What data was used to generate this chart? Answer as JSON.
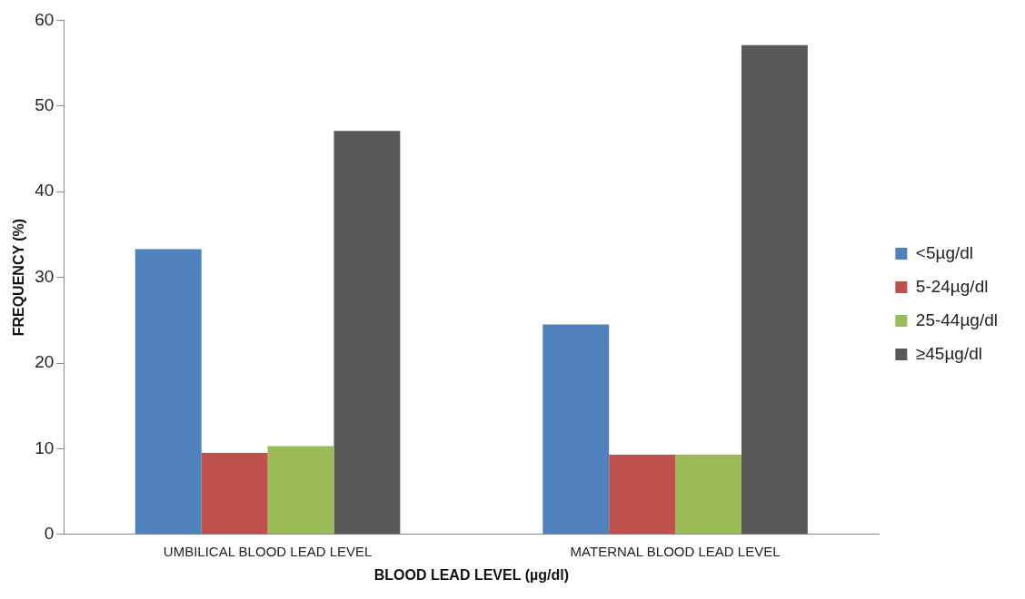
{
  "chart_data": {
    "type": "bar",
    "xlabel": "BLOOD LEAD LEVEL (µg/dl)",
    "ylabel": "FREQUENCY (%)",
    "categories": [
      "UMBILICAL BLOOD LEAD LEVEL",
      "MATERNAL BLOOD LEAD LEVEL"
    ],
    "series": [
      {
        "name": "<5µg/dl",
        "color": "#4f81bd",
        "values": [
          33.3,
          24.5
        ]
      },
      {
        "name": "5-24µg/dl",
        "color": "#c0504d",
        "values": [
          9.5,
          9.3
        ]
      },
      {
        "name": "25-44µg/dl",
        "color": "#9bbb59",
        "values": [
          10.3,
          9.3
        ]
      },
      {
        "name": "≥45µg/dl",
        "color": "#595959",
        "values": [
          47.1,
          57.1
        ]
      }
    ],
    "ylim": [
      0,
      60
    ],
    "yticks": [
      0,
      10,
      20,
      30,
      40,
      50,
      60
    ],
    "grid": false,
    "legend": "right"
  }
}
